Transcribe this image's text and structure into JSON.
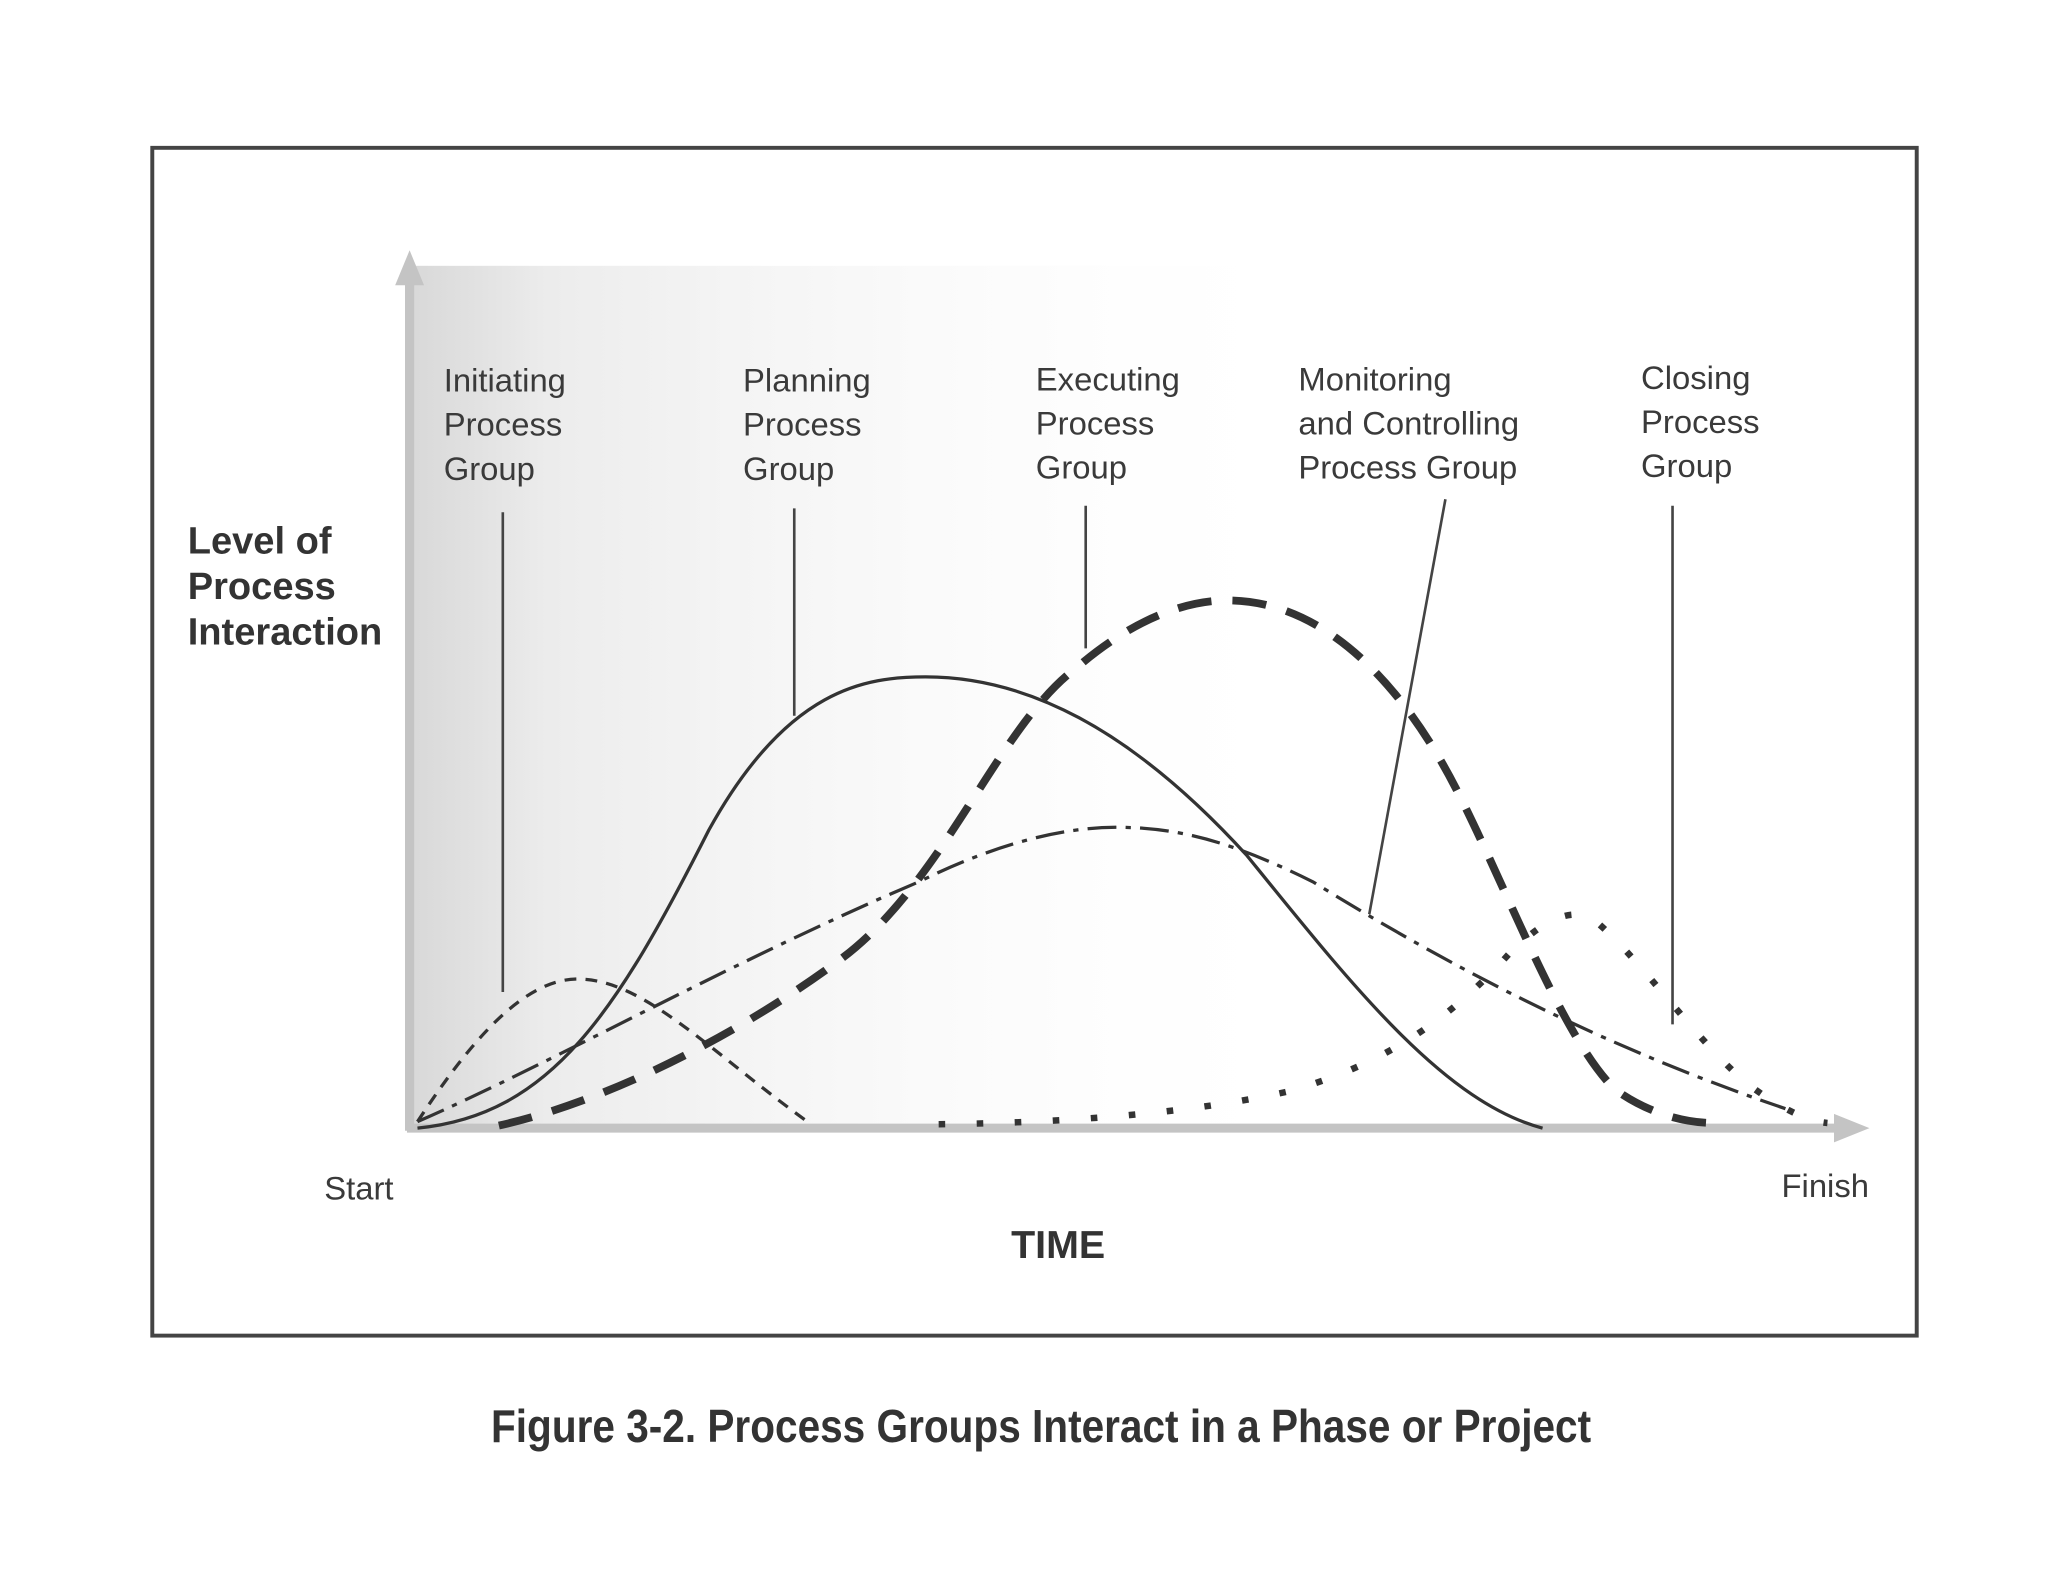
{
  "figure": {
    "groups": [
      {
        "lines": [
          "Initiating",
          "Process",
          "Group"
        ]
      },
      {
        "lines": [
          "Planning",
          "Process",
          "Group"
        ]
      },
      {
        "lines": [
          "Executing",
          "Process",
          "Group"
        ]
      },
      {
        "lines": [
          "Monitoring",
          "and Controlling",
          "Process Group"
        ]
      },
      {
        "lines": [
          "Closing",
          "Process",
          "Group"
        ]
      }
    ],
    "y_label": [
      "Level of",
      "Process",
      "Interaction"
    ],
    "start": "Start",
    "finish": "Finish",
    "x_label": "TIME",
    "caption": "Figure 3-2. Process Groups Interact in a Phase or Project"
  }
}
